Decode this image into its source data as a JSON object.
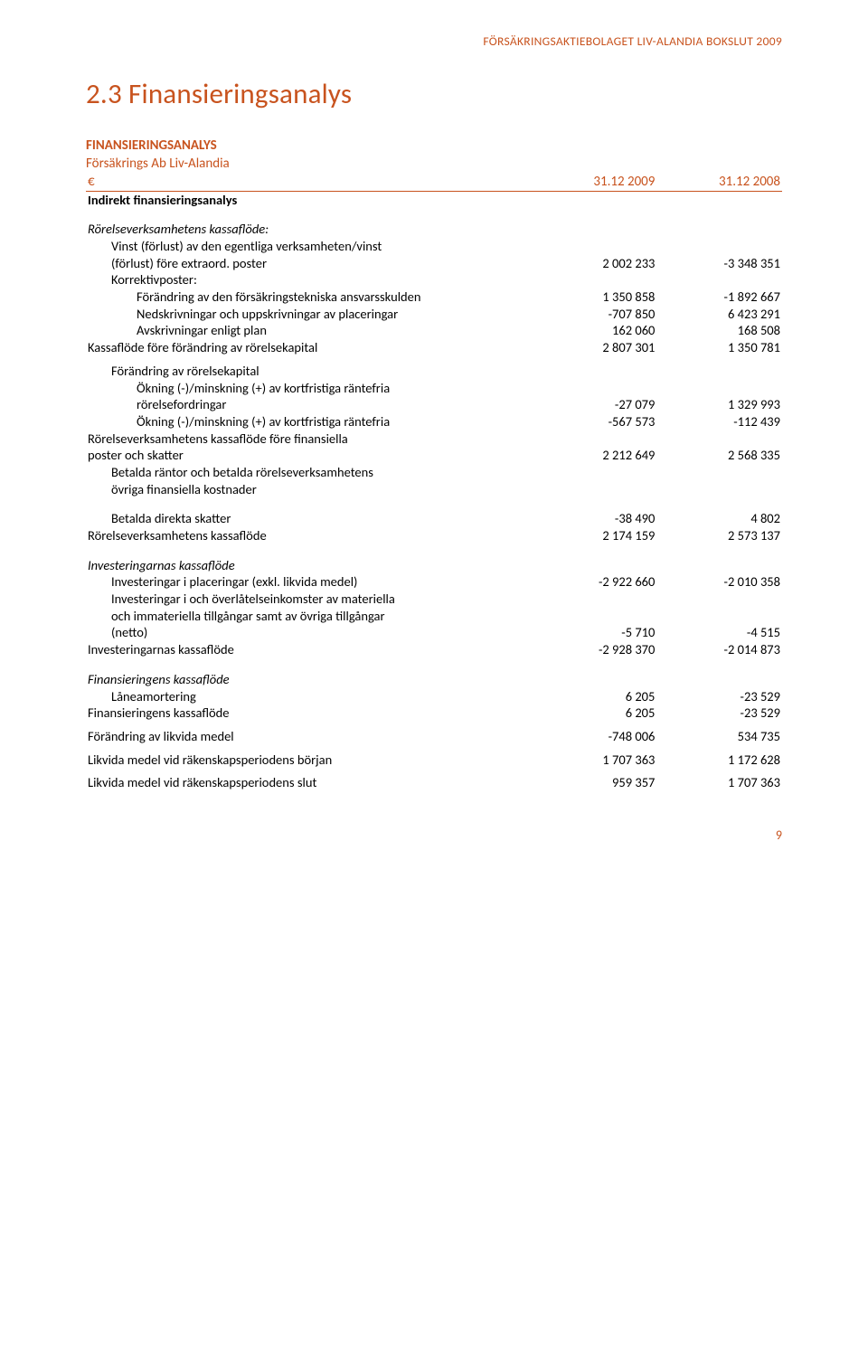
{
  "header": {
    "right": "FÖRSÄKRINGSAKTIEBOLAGET LIV-ALANDIA BOKSLUT 2009"
  },
  "title": "2.3 Finansieringsanalys",
  "subtitle1": "FINANSIERINGSANALYS",
  "subtitle2": "Försäkrings Ab Liv-Alandia",
  "col_currency": "€",
  "col_year1": "31.12 2009",
  "col_year2": "31.12 2008",
  "page_number": "9",
  "rows": [
    {
      "label": "Indirekt finansieringsanalys",
      "bold": true
    },
    {
      "spacer": true
    },
    {
      "label": "Rörelseverksamhetens kassaflöde:",
      "italic": true
    },
    {
      "label": "Vinst (förlust) av den egentliga verksamheten/vinst",
      "indent": 1
    },
    {
      "label": "(förlust) före extraord. poster",
      "indent": 1,
      "v1": "2 002 233",
      "v2": "-3 348 351"
    },
    {
      "label": "Korrektivposter:",
      "indent": 1
    },
    {
      "label": "Förändring av den försäkringstekniska ansvarsskulden",
      "indent": 2,
      "v1": "1 350 858",
      "v2": "-1 892 667"
    },
    {
      "label": "Nedskrivningar och uppskrivningar av placeringar",
      "indent": 2,
      "v1": "-707 850",
      "v2": "6 423 291"
    },
    {
      "label": "Avskrivningar enligt plan",
      "indent": 2,
      "v1": "162 060",
      "v2": "168 508"
    },
    {
      "label": "Kassaflöde före förändring av rörelsekapital",
      "v1": "2 807 301",
      "v2": "1 350 781"
    },
    {
      "spacer_sm": true
    },
    {
      "label": "Förändring av rörelsekapital",
      "indent": 1
    },
    {
      "label": "Ökning (-)/minskning (+) av kortfristiga räntefria",
      "indent": 2
    },
    {
      "label": "rörelsefordringar",
      "indent": 2,
      "v1": "-27 079",
      "v2": "1 329 993"
    },
    {
      "label": "Ökning (-)/minskning (+) av kortfristiga räntefria",
      "indent": 2,
      "v1": "-567 573",
      "v2": "-112 439"
    },
    {
      "label": "Rörelseverksamhetens kassaflöde före finansiella"
    },
    {
      "label": "poster och skatter",
      "v1": "2 212 649",
      "v2": "2 568 335"
    },
    {
      "label": "Betalda räntor och betalda rörelseverksamhetens",
      "indent": 1
    },
    {
      "label": "övriga finansiella kostnader",
      "indent": 1
    },
    {
      "spacer": true
    },
    {
      "label": "Betalda direkta skatter",
      "indent": 1,
      "v1": "-38 490",
      "v2": "4 802"
    },
    {
      "label": "Rörelseverksamhetens kassaflöde",
      "v1": "2 174 159",
      "v2": "2 573 137"
    },
    {
      "spacer": true
    },
    {
      "label": "Investeringarnas kassaflöde",
      "italic": true
    },
    {
      "label": "Investeringar i placeringar (exkl. likvida medel)",
      "indent": 1,
      "v1": "-2 922 660",
      "v2": "-2 010 358"
    },
    {
      "label": "Investeringar i och överlåtelseinkomster av materiella",
      "indent": 1
    },
    {
      "label": "och immateriella tillgångar samt av övriga tillgångar",
      "indent": 1
    },
    {
      "label": "(netto)",
      "indent": 1,
      "v1": "-5 710",
      "v2": "-4 515"
    },
    {
      "label": "Investeringarnas kassaflöde",
      "v1": "-2 928 370",
      "v2": "-2 014 873"
    },
    {
      "spacer": true
    },
    {
      "label": "Finansieringens kassaflöde",
      "italic": true
    },
    {
      "label": "Låneamortering",
      "indent": 1,
      "v1": "6 205",
      "v2": "-23 529"
    },
    {
      "label": "Finansieringens kassaflöde",
      "v1": "6 205",
      "v2": "-23 529"
    },
    {
      "spacer_sm": true
    },
    {
      "label": "Förändring av likvida medel",
      "v1": "-748 006",
      "v2": "534 735"
    },
    {
      "spacer_sm": true
    },
    {
      "label": "Likvida medel vid räkenskapsperiodens början",
      "v1": "1 707 363",
      "v2": "1 172 628"
    },
    {
      "spacer_sm": true
    },
    {
      "label": "Likvida medel vid räkenskapsperiodens slut",
      "v1": "959 357",
      "v2": "1 707 363"
    }
  ]
}
